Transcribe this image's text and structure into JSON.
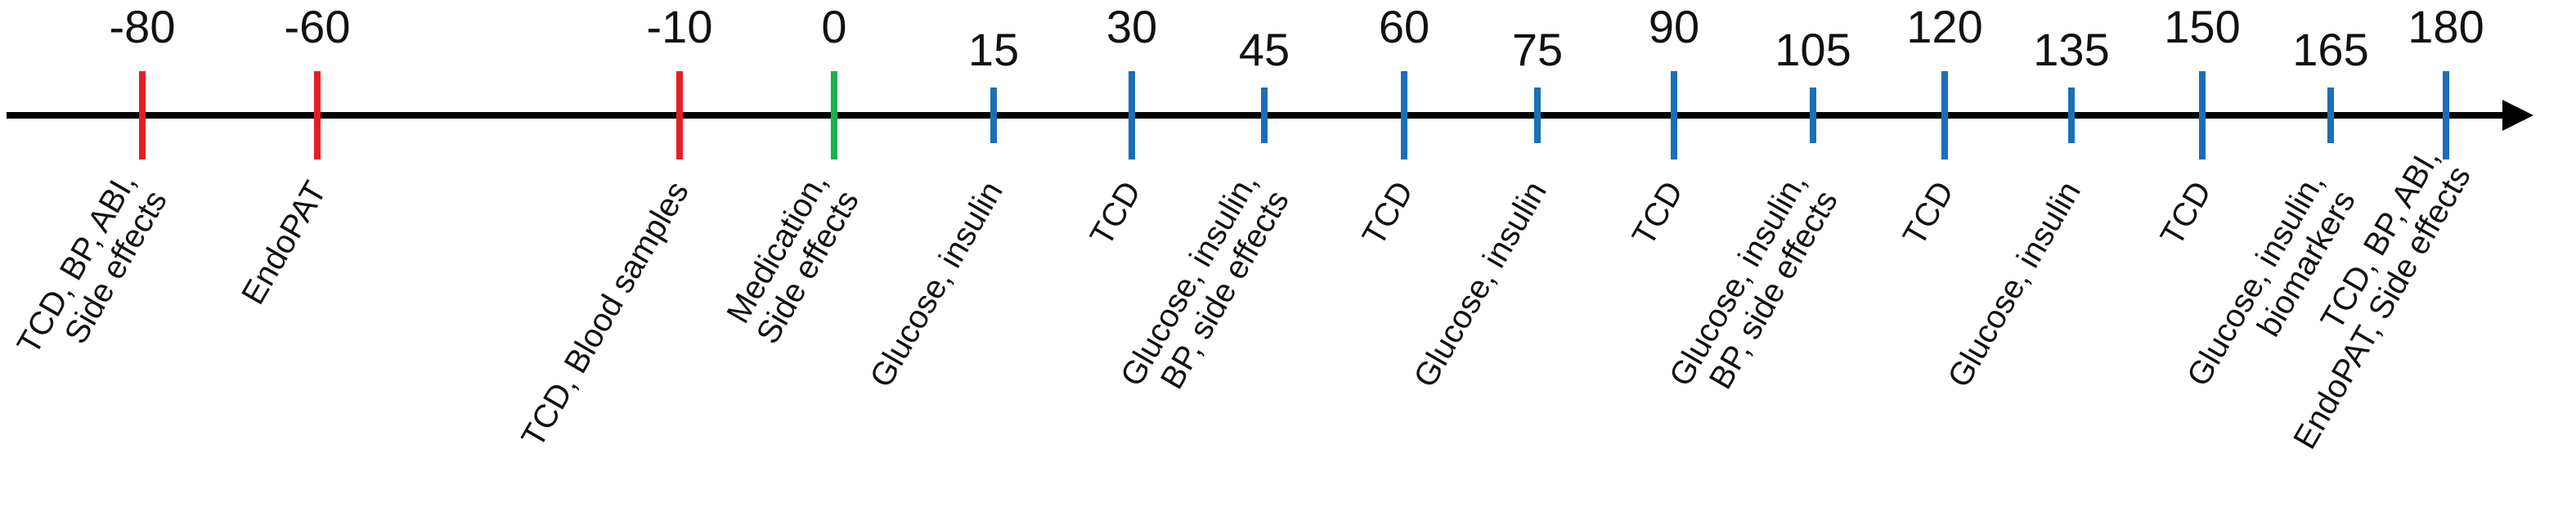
{
  "colors": {
    "axis": "#000000",
    "pre": "#e61e24",
    "dose": "#1ab04b",
    "post": "#1a6fb8",
    "text": "#111111"
  },
  "events": [
    {
      "time": "-80",
      "phase": "pre",
      "tick": "long",
      "label": [
        "TCD, BP, ABI,",
        "Side effects"
      ]
    },
    {
      "time": "-60",
      "phase": "pre",
      "tick": "long",
      "label": [
        "EndoPAT"
      ]
    },
    {
      "time": "-10",
      "phase": "pre",
      "tick": "long",
      "label": [
        "TCD, Blood samples"
      ]
    },
    {
      "time": "0",
      "phase": "dose",
      "tick": "long",
      "label": [
        "Medication,",
        "Side effects"
      ]
    },
    {
      "time": "15",
      "phase": "post",
      "tick": "short",
      "label": [
        "Glucose, insulin"
      ]
    },
    {
      "time": "30",
      "phase": "post",
      "tick": "long",
      "label": [
        "TCD"
      ]
    },
    {
      "time": "45",
      "phase": "post",
      "tick": "short",
      "label": [
        "Glucose, insulin,",
        "BP, side effects"
      ]
    },
    {
      "time": "60",
      "phase": "post",
      "tick": "long",
      "label": [
        "TCD"
      ]
    },
    {
      "time": "75",
      "phase": "post",
      "tick": "short",
      "label": [
        "Glucose, insulin"
      ]
    },
    {
      "time": "90",
      "phase": "post",
      "tick": "long",
      "label": [
        "TCD"
      ]
    },
    {
      "time": "105",
      "phase": "post",
      "tick": "short",
      "label": [
        "Glucose, insulin,",
        "BP, side effects"
      ]
    },
    {
      "time": "120",
      "phase": "post",
      "tick": "long",
      "label": [
        "TCD"
      ]
    },
    {
      "time": "135",
      "phase": "post",
      "tick": "short",
      "label": [
        "Glucose, insulin"
      ]
    },
    {
      "time": "150",
      "phase": "post",
      "tick": "long",
      "label": [
        "TCD"
      ]
    },
    {
      "time": "165",
      "phase": "post",
      "tick": "short",
      "label": [
        "Glucose, insulin,",
        "biomarkers"
      ]
    },
    {
      "time": "180",
      "phase": "post",
      "tick": "long",
      "label": [
        "TCD, BP, ABI,",
        "EndoPAT,  Side effects"
      ]
    }
  ]
}
